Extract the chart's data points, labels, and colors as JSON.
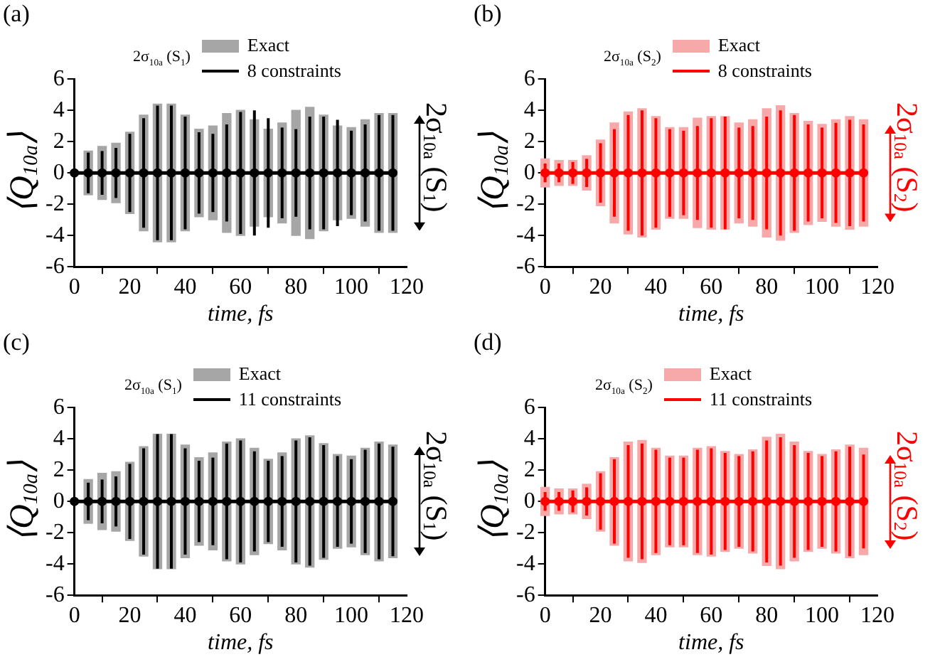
{
  "chart_data": [
    {
      "type": "bar",
      "title": "(a)",
      "xlabel": "time, fs",
      "ylabel": "⟨Q$_{10a}$⟩",
      "legend_title": "2σ$_{10a}$ (S$_{1}$)",
      "legend": "top right",
      "annotations": [
        "2σ$_{10a}$ (S$_{1}$)"
      ],
      "xlim": [
        0,
        120
      ],
      "xticks": [
        0,
        20,
        40,
        60,
        80,
        100,
        120
      ],
      "ylim": [
        -6,
        6
      ],
      "yticks": [
        -6,
        -4,
        -2,
        0,
        2,
        4,
        6
      ],
      "x": [
        0,
        5,
        10,
        15,
        20,
        25,
        30,
        35,
        40,
        45,
        50,
        55,
        60,
        65,
        70,
        75,
        80,
        85,
        90,
        95,
        100,
        105,
        110,
        115
      ],
      "series": [
        {
          "name": "Exact",
          "color": "#a6a6a6",
          "base": [
            null,
            -1.4,
            -1.7,
            -1.9,
            -2.6,
            -3.7,
            -4.4,
            -4.4,
            -3.7,
            -2.8,
            -3.0,
            -3.8,
            -4.0,
            -3.4,
            -2.8,
            -3.2,
            -4.0,
            -4.2,
            -3.7,
            -3.0,
            -2.9,
            -3.4,
            -3.8,
            -3.8
          ],
          "values": [
            null,
            2.8,
            3.4,
            3.8,
            5.2,
            7.4,
            8.8,
            8.8,
            7.4,
            5.6,
            6.0,
            7.6,
            8.0,
            6.8,
            5.6,
            6.4,
            8.0,
            8.4,
            7.4,
            6.0,
            5.8,
            6.8,
            7.6,
            7.6
          ]
        },
        {
          "name": "8 constraints",
          "type": "line",
          "color": "#000000",
          "marker": "circle",
          "values": [
            0,
            0,
            0,
            0,
            0,
            0,
            0,
            0,
            0,
            0,
            0,
            0,
            0,
            0,
            0,
            0,
            0,
            0,
            0,
            0,
            0,
            0,
            0,
            0
          ],
          "errors": [
            null,
            1.3,
            1.4,
            1.6,
            2.5,
            3.5,
            4.3,
            4.3,
            3.6,
            2.6,
            2.5,
            3.1,
            3.9,
            4.0,
            3.5,
            2.9,
            2.8,
            3.6,
            3.6,
            3.4,
            2.7,
            3.1,
            3.7,
            3.7
          ]
        }
      ]
    },
    {
      "type": "bar",
      "title": "(b)",
      "xlabel": "time, fs",
      "ylabel": "⟨Q$_{10a}$⟩",
      "legend_title": "2σ$_{10a}$ (S$_{2}$)",
      "legend": "top right",
      "annotations": [
        "2σ$_{10a}$ (S$_{2}$)"
      ],
      "xlim": [
        0,
        120
      ],
      "xticks": [
        0,
        20,
        40,
        60,
        80,
        100,
        120
      ],
      "ylim": [
        -6,
        6
      ],
      "yticks": [
        -6,
        -4,
        -2,
        0,
        2,
        4,
        6
      ],
      "x": [
        0,
        5,
        10,
        15,
        20,
        25,
        30,
        35,
        40,
        45,
        50,
        55,
        60,
        65,
        70,
        75,
        80,
        85,
        90,
        95,
        100,
        105,
        110,
        115
      ],
      "series": [
        {
          "name": "Exact",
          "color": "#f7a8a8",
          "base": [
            -0.9,
            -0.8,
            -0.8,
            -1.1,
            -2.1,
            -3.2,
            -3.9,
            -4.1,
            -3.6,
            -2.9,
            -2.9,
            -3.5,
            -3.6,
            -3.6,
            -3.2,
            -3.4,
            -4.1,
            -4.3,
            -3.8,
            -3.3,
            -3.1,
            -3.4,
            -3.6,
            -3.4
          ],
          "values": [
            1.8,
            1.6,
            1.6,
            2.2,
            4.2,
            6.4,
            7.8,
            8.2,
            7.2,
            5.8,
            5.8,
            7.0,
            7.2,
            7.2,
            6.4,
            6.8,
            8.2,
            8.6,
            7.6,
            6.6,
            6.2,
            6.8,
            7.2,
            6.8
          ]
        },
        {
          "name": "8 constraints",
          "type": "line",
          "color": "#ff0000",
          "marker": "circle",
          "values": [
            0,
            0,
            0,
            0,
            0,
            0,
            0,
            0,
            0,
            0,
            0,
            0,
            0,
            0,
            0,
            0,
            0,
            0,
            0,
            0,
            0,
            0,
            0,
            0
          ],
          "errors": [
            0.6,
            0.6,
            0.7,
            0.9,
            1.9,
            2.8,
            3.7,
            4.0,
            3.5,
            2.8,
            2.7,
            3.0,
            3.5,
            3.6,
            2.9,
            3.0,
            3.6,
            4.0,
            3.7,
            3.1,
            2.9,
            3.2,
            3.4,
            3.1
          ]
        }
      ]
    },
    {
      "type": "bar",
      "title": "(c)",
      "xlabel": "time, fs",
      "ylabel": "⟨Q$_{10a}$⟩",
      "legend_title": "2σ$_{10a}$ (S$_{1}$)",
      "legend": "top right",
      "annotations": [
        "2σ$_{10a}$ (S$_{1}$)"
      ],
      "xlim": [
        0,
        120
      ],
      "xticks": [
        0,
        20,
        40,
        60,
        80,
        100,
        120
      ],
      "ylim": [
        -6,
        6
      ],
      "yticks": [
        -6,
        -4,
        -2,
        0,
        2,
        4,
        6
      ],
      "x": [
        0,
        5,
        10,
        15,
        20,
        25,
        30,
        35,
        40,
        45,
        50,
        55,
        60,
        65,
        70,
        75,
        80,
        85,
        90,
        95,
        100,
        105,
        110,
        115
      ],
      "series": [
        {
          "name": "Exact",
          "color": "#a6a6a6",
          "base": [
            null,
            -1.4,
            -1.8,
            -1.9,
            -2.5,
            -3.5,
            -4.3,
            -4.3,
            -3.6,
            -2.8,
            -3.1,
            -3.8,
            -4.0,
            -3.4,
            -2.7,
            -3.1,
            -4.0,
            -4.2,
            -3.7,
            -3.0,
            -2.9,
            -3.4,
            -3.8,
            -3.6
          ],
          "values": [
            null,
            2.8,
            3.6,
            3.8,
            5.0,
            7.0,
            8.6,
            8.6,
            7.2,
            5.6,
            6.2,
            7.6,
            8.0,
            6.8,
            5.4,
            6.2,
            8.0,
            8.4,
            7.4,
            6.0,
            5.8,
            6.8,
            7.6,
            7.2
          ]
        },
        {
          "name": "11 constraints",
          "type": "line",
          "color": "#000000",
          "marker": "circle",
          "values": [
            0,
            0,
            0,
            0,
            0,
            0,
            0,
            0,
            0,
            0,
            0,
            0,
            0,
            0,
            0,
            0,
            0,
            0,
            0,
            0,
            0,
            0,
            0,
            0
          ],
          "errors": [
            null,
            1.2,
            1.4,
            1.6,
            2.4,
            3.4,
            4.3,
            4.3,
            3.4,
            2.6,
            2.8,
            3.7,
            3.9,
            3.2,
            2.6,
            2.9,
            3.9,
            4.1,
            3.6,
            2.9,
            2.7,
            3.3,
            3.7,
            3.5
          ]
        }
      ]
    },
    {
      "type": "bar",
      "title": "(d)",
      "xlabel": "time, fs",
      "ylabel": "⟨Q$_{10a}$⟩",
      "legend_title": "2σ$_{10a}$ (S$_{2}$)",
      "legend": "top right",
      "annotations": [
        "2σ$_{10a}$ (S$_{2}$)"
      ],
      "xlim": [
        0,
        120
      ],
      "xticks": [
        0,
        20,
        40,
        60,
        80,
        100,
        120
      ],
      "ylim": [
        -6,
        6
      ],
      "yticks": [
        -6,
        -4,
        -2,
        0,
        2,
        4,
        6
      ],
      "x": [
        0,
        5,
        10,
        15,
        20,
        25,
        30,
        35,
        40,
        45,
        50,
        55,
        60,
        65,
        70,
        75,
        80,
        85,
        90,
        95,
        100,
        105,
        110,
        115
      ],
      "series": [
        {
          "name": "Exact",
          "color": "#f7a8a8",
          "base": [
            -0.9,
            -0.8,
            -0.8,
            -1.1,
            -1.9,
            -2.8,
            -3.8,
            -3.9,
            -3.4,
            -2.9,
            -2.9,
            -3.4,
            -3.5,
            -3.2,
            -3.0,
            -3.3,
            -4.1,
            -4.3,
            -3.8,
            -3.2,
            -3.0,
            -3.3,
            -3.6,
            -3.4
          ],
          "values": [
            1.8,
            1.6,
            1.6,
            2.2,
            3.8,
            5.6,
            7.6,
            7.8,
            6.8,
            5.8,
            5.8,
            6.8,
            7.0,
            6.4,
            6.0,
            6.6,
            8.2,
            8.6,
            7.6,
            6.4,
            6.0,
            6.6,
            7.2,
            6.8
          ]
        },
        {
          "name": "11 constraints",
          "type": "line",
          "color": "#ff0000",
          "marker": "circle",
          "values": [
            0,
            0,
            0,
            0,
            0,
            0,
            0,
            0,
            0,
            0,
            0,
            0,
            0,
            0,
            0,
            0,
            0,
            0,
            0,
            0,
            0,
            0,
            0,
            0
          ],
          "errors": [
            0.6,
            0.6,
            0.7,
            0.9,
            1.8,
            2.7,
            3.6,
            3.7,
            3.3,
            2.8,
            2.8,
            3.3,
            3.4,
            3.1,
            2.9,
            3.2,
            3.9,
            4.1,
            3.6,
            3.1,
            2.9,
            3.2,
            3.5,
            3.0
          ]
        }
      ]
    }
  ]
}
